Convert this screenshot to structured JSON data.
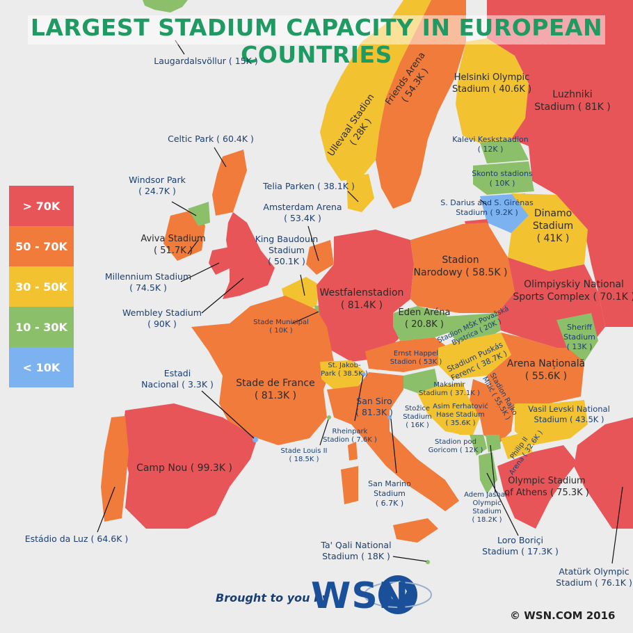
{
  "title": "LARGEST STADIUM CAPACITY IN EUROPEAN COUNTRIES",
  "legend": [
    {
      "label": "> 70K",
      "color": "#e85558"
    },
    {
      "label": "50 - 70K",
      "color": "#f07b3a"
    },
    {
      "label": "30 - 50K",
      "color": "#f2c230"
    },
    {
      "label": "10 - 30K",
      "color": "#8bbf6a"
    },
    {
      "label": "< 10K",
      "color": "#7db2f0"
    }
  ],
  "labels": {
    "iceland": "Laugardalsvöllur ( 15K )",
    "scotland": "Celtic Park ( 60.4K )",
    "nireland_1": "Windsor Park",
    "nireland_2": "( 24.7K )",
    "ireland_1": "Aviva Stadium",
    "ireland_2": "( 51.7K )",
    "wales_1": "Millennium Stadium",
    "wales_2": "( 74.5K )",
    "england_1": "Wembley Stadium",
    "england_2": "( 90K )",
    "andorra_1": "Estadi",
    "andorra_2": "Nacional ( 3.3K )",
    "portugal": "Estádio da Luz ( 64.6K )",
    "spain": "Camp Nou ( 99.3K )",
    "france_1": "Stade de France",
    "france_2": "( 81.3K )",
    "luxembourg_1": "Stade Municipal",
    "luxembourg_2": "( 10K )",
    "belgium_1": "King Baudouin",
    "belgium_2": "Stadium",
    "belgium_3": "( 50.1K )",
    "netherlands_1": "Amsterdam Arena",
    "netherlands_2": "( 53.4K )",
    "denmark": "Telia Parken ( 38.1K )",
    "norway_1": "Ullevaal Stadion",
    "norway_2": "( 28K )",
    "sweden_1": "Friends Arena",
    "sweden_2": "( 54.3K )",
    "finland_1": "Helsinki Olympic",
    "finland_2": "Stadium ( 40.6K )",
    "russia_1": "Luzhniki",
    "russia_2": "Stadium ( 81K )",
    "estonia_1": "Kalevi Keskstaadion",
    "estonia_2": "( 12K )",
    "latvia_1": "Skonto stadions",
    "latvia_2": "( 10K )",
    "lithuania_1": "S. Darius and S. Girėnas",
    "lithuania_2": "Stadium ( 9.2K )",
    "belarus_1": "Dinamo",
    "belarus_2": "Stadium",
    "belarus_3": "( 41K )",
    "germany_1": "Westfalenstadion",
    "germany_2": "( 81.4K )",
    "poland_1": "Stadion",
    "poland_2": "Narodowy ( 58.5K )",
    "ukraine_1": "Olimpiyskiy National",
    "ukraine_2": "Sports Complex ( 70.1K )",
    "czech_1": "Eden Aréna",
    "czech_2": "( 20.8K )",
    "slovakia_1": "Stadion MŠK Považská",
    "slovakia_2": "Bystrica ( 20K )",
    "moldova_1": "Sheriff",
    "moldova_2": "Stadium",
    "moldova_3": "( 13K )",
    "austria_1": "Ernst Happel",
    "austria_2": "Stadion ( 53K )",
    "hungary_1": "Stadium Puskás",
    "hungary_2": "Ferenc ( 38.7K )",
    "romania_1": "Arena Națională",
    "romania_2": "( 55.6K )",
    "switzerland_1": "St. Jakob-",
    "switzerland_2": "Park ( 38.5K )",
    "italy_1": "San Siro",
    "italy_2": "( 81.3K )",
    "slovenia_1": "Stožice",
    "slovenia_2": "Stadium",
    "slovenia_3": "( 16K )",
    "croatia_1": "Maksimir",
    "croatia_2": "Stadium ( 37.1K )",
    "bosnia_1": "Asim Ferhatović",
    "bosnia_2": "Hase Stadium",
    "bosnia_3": "( 35.6K )",
    "serbia_1": "Stadion Rajko",
    "serbia_2": "Mitić ( 55.5K )",
    "montenegro_1": "Stadion pod",
    "montenegro_2": "Goricom ( 12K )",
    "bulgaria_1": "Vasil Levski National",
    "bulgaria_2": "Stadium ( 43.5K )",
    "macedonia_1": "Philip II",
    "macedonia_2": "Arena ( 32.6K )",
    "liechtenstein_1": "Rheinpark",
    "liechtenstein_2": "Stadion ( 7.6K )",
    "monaco_1": "Stade Louis II",
    "monaco_2": "( 18.5K )",
    "sanmarino_1": "San Marino",
    "sanmarino_2": "Stadium",
    "sanmarino_3": "( 6.7K )",
    "kosovo_1": "Adem Jashari",
    "kosovo_2": "Olympic",
    "kosovo_3": "Stadium",
    "kosovo_4": "( 18.2K )",
    "albania_1": "Loro Boriçi",
    "albania_2": "Stadium ( 17.3K )",
    "greece_1": "Olympic Stadium",
    "greece_2": "of Athens ( 75.3K )",
    "malta_1": "Ta' Qali National",
    "malta_2": "Stadium ( 18K )",
    "turkey_1": "Atatürk Olympic",
    "turkey_2": "Stadium ( 76.1K )"
  },
  "footer": {
    "brought": "Brought to you by",
    "logo": "WSN",
    "copyright": "© WSN.COM 2016"
  }
}
